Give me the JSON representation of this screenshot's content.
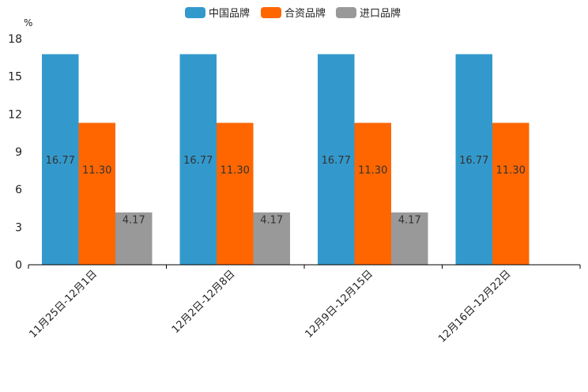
{
  "chart_data": {
    "type": "bar",
    "title": "",
    "xlabel": "",
    "ylabel": "%",
    "ylim": [
      0,
      18
    ],
    "yticks": [
      0,
      3,
      6,
      9,
      12,
      15,
      18
    ],
    "grid": false,
    "legend_position": "top-center",
    "categories": [
      "11月25日-12月1日",
      "12月2日-12月8日",
      "12月9日-12月15日",
      "12月16日-12月22日"
    ],
    "series": [
      {
        "name": "中国品牌",
        "color": "#3399CC",
        "values": [
          16.77,
          16.77,
          16.77,
          16.77
        ],
        "labels": [
          "16.77",
          "16.77",
          "16.77",
          "16.77"
        ]
      },
      {
        "name": "合资品牌",
        "color": "#FF6600",
        "values": [
          11.3,
          11.3,
          11.3,
          11.3
        ],
        "labels": [
          "11.30",
          "11.30",
          "11.30",
          "11.30"
        ]
      },
      {
        "name": "进口品牌",
        "color": "#999999",
        "values": [
          4.17,
          4.17,
          4.17,
          null
        ],
        "labels": [
          "4.17",
          "4.17",
          "4.17",
          null
        ]
      }
    ]
  }
}
